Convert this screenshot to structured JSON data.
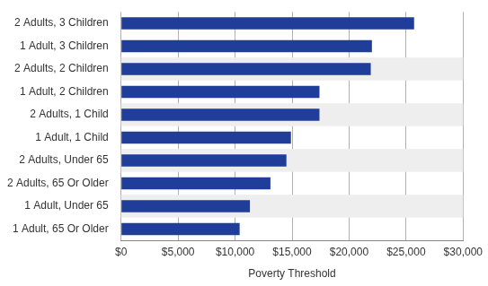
{
  "chart_data": {
    "type": "bar",
    "orientation": "horizontal",
    "x_label": "Poverty Threshold",
    "categories": [
      "2 Adults, 3 Children",
      "1 Adult, 3 Children",
      "2 Adults, 2 Children",
      "1 Adult, 2 Children",
      "2 Adults, 1 Child",
      "1 Adult, 1 Child",
      "2 Adults, Under 65",
      "2 Adults, 65 Or Older",
      "1 Adult, Under 65",
      "1 Adult, 65 Or Older"
    ],
    "values": [
      25700,
      22000,
      21900,
      17400,
      17400,
      14900,
      14500,
      13100,
      11300,
      10400
    ],
    "color": "#1f3d99",
    "xlim": [
      0,
      30000
    ],
    "xticks": [
      {
        "value": 0,
        "label": "$0"
      },
      {
        "value": 5000,
        "label": "$5,000"
      },
      {
        "value": 10000,
        "label": "$10,000"
      },
      {
        "value": 15000,
        "label": "$15,000"
      },
      {
        "value": 20000,
        "label": "$20,000"
      },
      {
        "value": 25000,
        "label": "$25,000"
      },
      {
        "value": 30000,
        "label": "$30,000"
      }
    ],
    "grid": true
  }
}
